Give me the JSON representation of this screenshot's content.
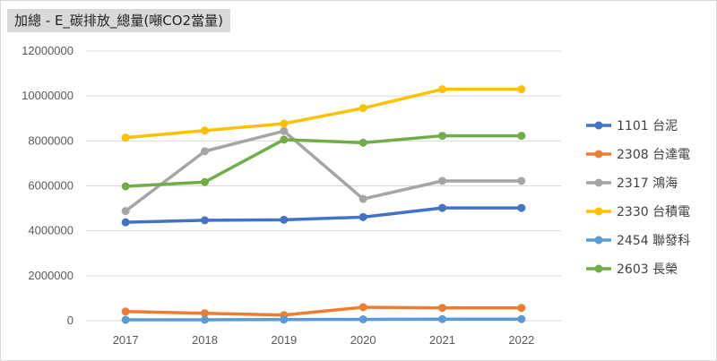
{
  "chart_data": {
    "type": "line",
    "title": "加總 - E_碳排放_總量(噸CO2當量)",
    "xlabel": "",
    "ylabel": "",
    "x": [
      "2017",
      "2018",
      "2019",
      "2020",
      "2021",
      "2022"
    ],
    "ylim": [
      0,
      12000000
    ],
    "yticks": [
      "0",
      "2000000",
      "4000000",
      "6000000",
      "8000000",
      "10000000",
      "12000000"
    ],
    "grid": true,
    "legend_position": "right",
    "series": [
      {
        "name": "1101 台泥",
        "color": "#4472C4",
        "values": [
          4380000,
          4470000,
          4490000,
          4610000,
          5020000,
          5020000
        ]
      },
      {
        "name": "2308 台達電",
        "color": "#ED7D31",
        "values": [
          410000,
          330000,
          250000,
          600000,
          570000,
          570000
        ]
      },
      {
        "name": "2317 鴻海",
        "color": "#A5A5A5",
        "values": [
          4880000,
          7540000,
          8440000,
          5420000,
          6220000,
          6220000
        ]
      },
      {
        "name": "2330 台積電",
        "color": "#FFC000",
        "values": [
          8150000,
          8460000,
          8770000,
          9460000,
          10300000,
          10300000
        ]
      },
      {
        "name": "2454 聯發科",
        "color": "#5B9BD5",
        "values": [
          40000,
          40000,
          50000,
          60000,
          70000,
          70000
        ]
      },
      {
        "name": "2603 長榮",
        "color": "#70AD47",
        "values": [
          5980000,
          6170000,
          8060000,
          7920000,
          8230000,
          8230000
        ]
      }
    ]
  }
}
